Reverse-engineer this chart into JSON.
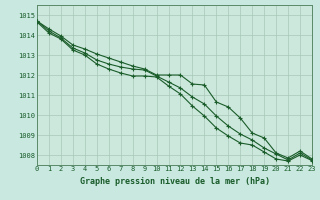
{
  "title": "Graphe pression niveau de la mer (hPa)",
  "background_color": "#c8e8e0",
  "plot_bg_color": "#cce8dc",
  "grid_color": "#a8c8b8",
  "line_color": "#1a5c2a",
  "border_color": "#5a8a6a",
  "xlim": [
    0,
    23
  ],
  "ylim": [
    1007.5,
    1015.5
  ],
  "yticks": [
    1008,
    1009,
    1010,
    1011,
    1012,
    1013,
    1014,
    1015
  ],
  "xticks": [
    0,
    1,
    2,
    3,
    4,
    5,
    6,
    7,
    8,
    9,
    10,
    11,
    12,
    13,
    14,
    15,
    16,
    17,
    18,
    19,
    20,
    21,
    22,
    23
  ],
  "series1_x": [
    0,
    1,
    2,
    3,
    4,
    5,
    6,
    7,
    8,
    9,
    10,
    11,
    12,
    13,
    14,
    15,
    16,
    17,
    18,
    19,
    20,
    21,
    22,
    23
  ],
  "series1_y": [
    1014.7,
    1014.3,
    1013.95,
    1013.5,
    1013.3,
    1013.05,
    1012.85,
    1012.65,
    1012.45,
    1012.3,
    1012.0,
    1012.0,
    1012.0,
    1011.55,
    1011.5,
    1010.65,
    1010.4,
    1009.85,
    1009.1,
    1008.85,
    1008.1,
    1007.85,
    1008.2,
    1007.8
  ],
  "series2_x": [
    0,
    1,
    2,
    3,
    4,
    5,
    6,
    7,
    8,
    9,
    10,
    11,
    12,
    13,
    14,
    15,
    16,
    17,
    18,
    19,
    20,
    21,
    22,
    23
  ],
  "series2_y": [
    1014.7,
    1014.2,
    1013.85,
    1013.35,
    1013.1,
    1012.75,
    1012.55,
    1012.4,
    1012.3,
    1012.25,
    1011.95,
    1011.65,
    1011.35,
    1010.9,
    1010.55,
    1009.95,
    1009.45,
    1009.05,
    1008.75,
    1008.35,
    1008.05,
    1007.75,
    1008.1,
    1007.75
  ],
  "series3_x": [
    0,
    1,
    2,
    3,
    4,
    5,
    6,
    7,
    8,
    9,
    10,
    11,
    12,
    13,
    14,
    15,
    16,
    17,
    18,
    19,
    20,
    21,
    22,
    23
  ],
  "series3_y": [
    1014.65,
    1014.1,
    1013.8,
    1013.25,
    1013.0,
    1012.55,
    1012.3,
    1012.1,
    1011.95,
    1011.95,
    1011.9,
    1011.45,
    1011.05,
    1010.45,
    1009.95,
    1009.35,
    1008.95,
    1008.6,
    1008.5,
    1008.15,
    1007.8,
    1007.7,
    1008.0,
    1007.72
  ]
}
